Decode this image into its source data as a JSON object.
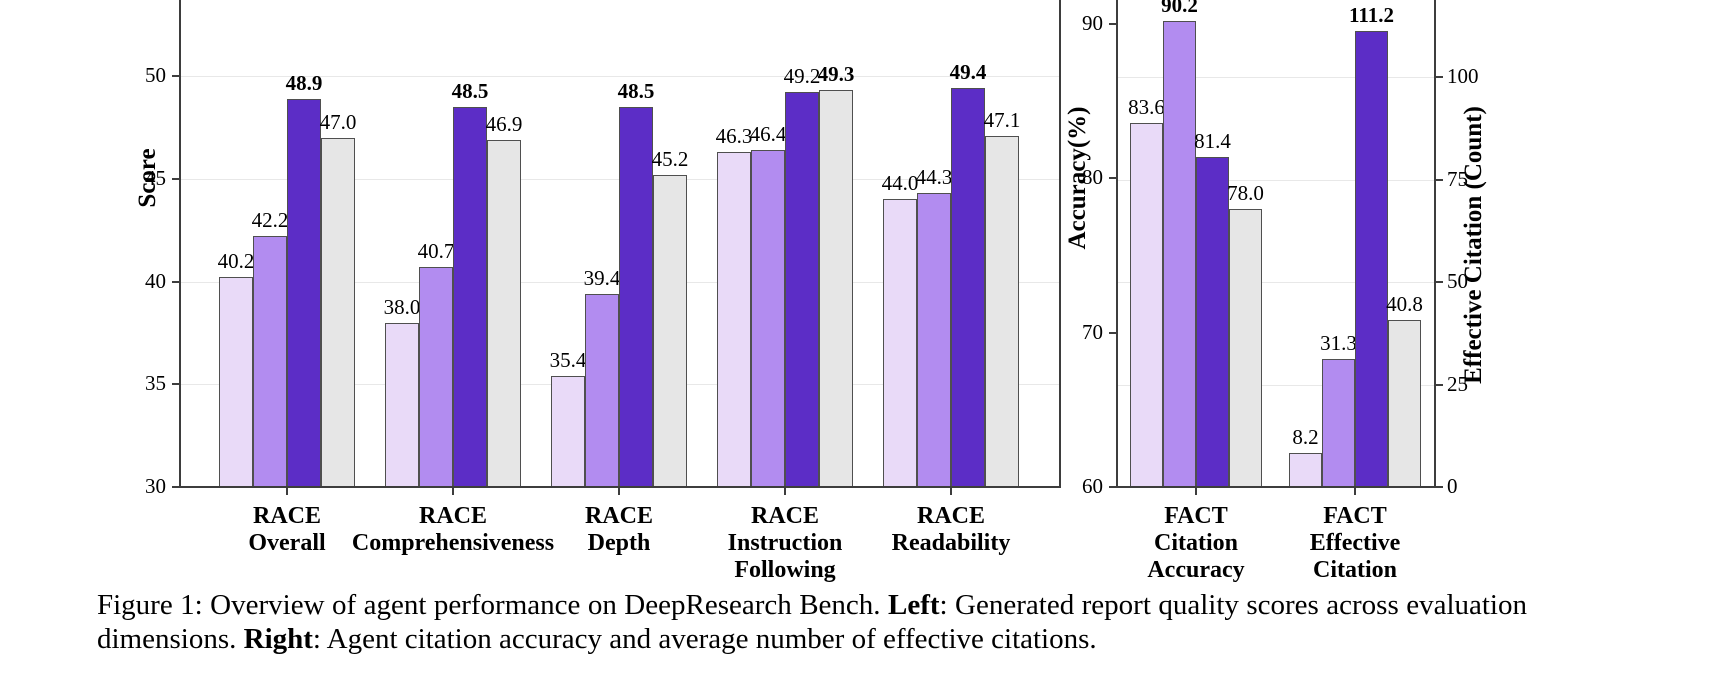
{
  "caption": {
    "seg1": "Figure 1: Overview of agent performance on DeepResearch Bench. ",
    "left_label": "Left",
    "seg2": ": Generated report quality scores across evaluation dimensions. ",
    "right_label": "Right",
    "seg3": ": Agent citation accuracy and average number of effective citations."
  },
  "chart_data": [
    {
      "type": "bar",
      "title": "",
      "ylabel": "Score",
      "xlabel": "",
      "ylim": [
        30,
        52
      ],
      "yticks": [
        30,
        35,
        40,
        45,
        50
      ],
      "grid": "horizontal light gray at 35/40/45/50",
      "legend": "none visible (figure cropped at top)",
      "categories": [
        [
          "RACE",
          "Overall"
        ],
        [
          "RACE",
          "Comprehensiveness"
        ],
        [
          "RACE",
          "Depth"
        ],
        [
          "RACE",
          "Instruction",
          "Following"
        ],
        [
          "RACE",
          "Readability"
        ]
      ],
      "series": [
        {
          "color": "#e9daf8",
          "values": [
            40.2,
            38.0,
            35.4,
            46.3,
            44.0
          ]
        },
        {
          "color": "#b28cf0",
          "values": [
            42.2,
            40.7,
            39.4,
            46.4,
            44.3
          ]
        },
        {
          "color": "#5c2dc6",
          "values": [
            48.9,
            48.5,
            48.5,
            49.2,
            49.4
          ]
        },
        {
          "color": "#e6e6e6",
          "values": [
            47.0,
            46.9,
            45.2,
            49.3,
            47.1
          ]
        }
      ],
      "value_label_bold_rule": "max value of each group is bold"
    },
    {
      "type": "bar",
      "title": "",
      "ylabel_left": "Accuracy(%)",
      "ylabel_right": "Effective Citation (Count)",
      "ylim_left": [
        60,
        91
      ],
      "ylim_right": [
        0,
        110
      ],
      "yticks_left": [
        60,
        70,
        80,
        90
      ],
      "yticks_right": [
        0,
        25,
        50,
        75,
        100
      ],
      "grid": "horizontal light gray at right-axis ticks 25/50/75/100",
      "legend": "none visible (figure cropped at top)",
      "categories": [
        [
          "FACT",
          "Citation",
          "Accuracy"
        ],
        [
          "FACT",
          "Effective",
          "Citation"
        ]
      ],
      "group_axis": [
        "left",
        "right"
      ],
      "series": [
        {
          "color": "#e9daf8",
          "values": [
            83.6,
            8.2
          ]
        },
        {
          "color": "#b28cf0",
          "values": [
            90.2,
            31.3
          ]
        },
        {
          "color": "#5c2dc6",
          "values": [
            81.4,
            111.2
          ]
        },
        {
          "color": "#e6e6e6",
          "values": [
            78.0,
            40.8
          ]
        }
      ],
      "value_label_bold_rule": "max value of each group is bold"
    }
  ]
}
